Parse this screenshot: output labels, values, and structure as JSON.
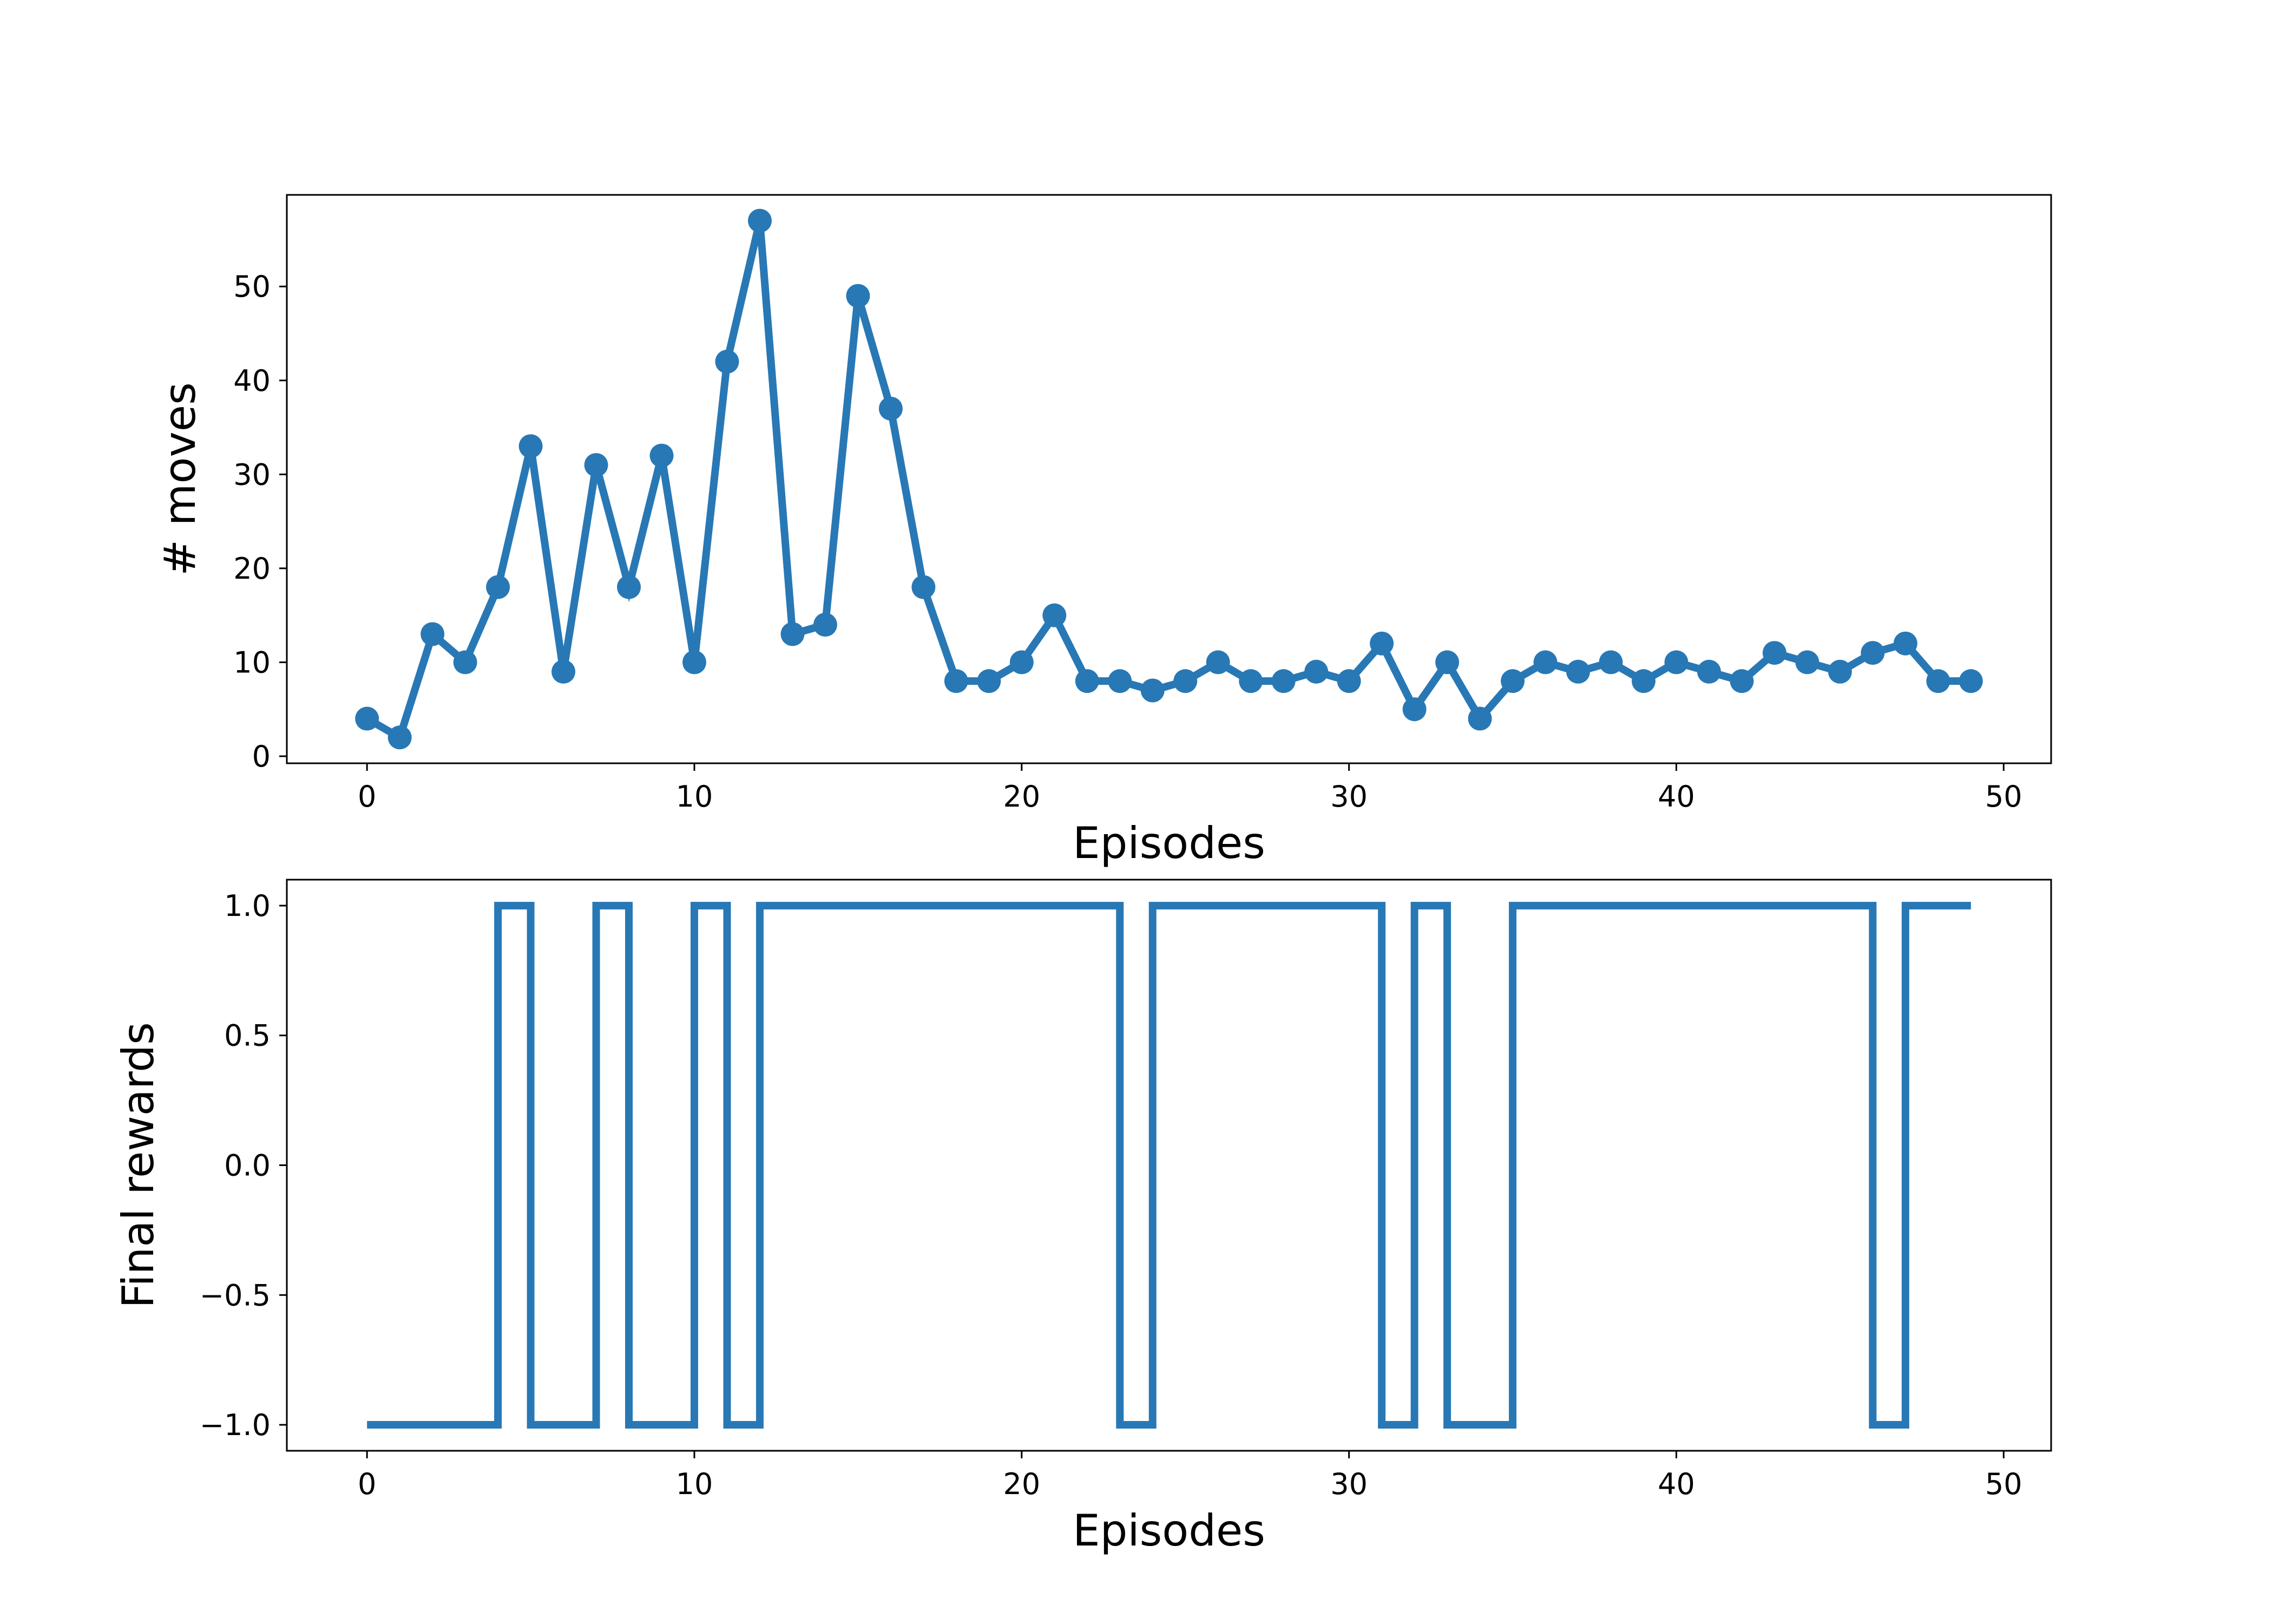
{
  "chart_data": [
    {
      "type": "line",
      "marker": "circle",
      "color": "#2878b5",
      "xlabel": "Episodes",
      "ylabel": "# moves",
      "xlim": [
        -2.45,
        51.45
      ],
      "ylim": [
        -0.75,
        59.75
      ],
      "xticks": [
        0,
        10,
        20,
        30,
        40,
        50
      ],
      "yticks": [
        0,
        10,
        20,
        30,
        40,
        50
      ],
      "grid": false,
      "series": [
        {
          "x": [
            0,
            1,
            2,
            3,
            4,
            5,
            6,
            7,
            8,
            9,
            10,
            11,
            12,
            13,
            14,
            15,
            16,
            17,
            18,
            19,
            20,
            21,
            22,
            23,
            24,
            25,
            26,
            27,
            28,
            29,
            30,
            31,
            32,
            33,
            34,
            35,
            36,
            37,
            38,
            39,
            40,
            41,
            42,
            43,
            44,
            45,
            46,
            47,
            48,
            49
          ],
          "values": [
            4,
            2,
            13,
            10,
            18,
            33,
            9,
            31,
            18,
            32,
            10,
            42,
            57,
            13,
            14,
            49,
            37,
            18,
            8,
            8,
            10,
            15,
            8,
            8,
            7,
            8,
            10,
            8,
            8,
            9,
            8,
            12,
            5,
            10,
            4,
            8,
            10,
            9,
            10,
            8,
            10,
            9,
            8,
            11,
            10,
            9,
            11,
            12,
            8,
            8
          ]
        }
      ]
    },
    {
      "type": "line",
      "drawstyle": "steps-post",
      "color": "#2878b5",
      "xlabel": "Episodes",
      "ylabel": "Final rewards",
      "xlim": [
        -2.45,
        51.45
      ],
      "ylim": [
        -1.1,
        1.1
      ],
      "xticks": [
        0,
        10,
        20,
        30,
        40,
        50
      ],
      "yticks": [
        -1.0,
        -0.5,
        0.0,
        0.5,
        1.0
      ],
      "ytick_labels": [
        "−1.0",
        "−0.5",
        "0.0",
        "0.5",
        "1.0"
      ],
      "grid": false,
      "series": [
        {
          "x": [
            0,
            1,
            2,
            3,
            4,
            5,
            6,
            7,
            8,
            9,
            10,
            11,
            12,
            13,
            14,
            15,
            16,
            17,
            18,
            19,
            20,
            21,
            22,
            23,
            24,
            25,
            26,
            27,
            28,
            29,
            30,
            31,
            32,
            33,
            34,
            35,
            36,
            37,
            38,
            39,
            40,
            41,
            42,
            43,
            44,
            45,
            46,
            47,
            48,
            49
          ],
          "values": [
            -1,
            -1,
            -1,
            -1,
            1,
            -1,
            -1,
            1,
            -1,
            -1,
            1,
            -1,
            1,
            1,
            1,
            1,
            1,
            1,
            1,
            1,
            1,
            1,
            1,
            -1,
            1,
            1,
            1,
            1,
            1,
            1,
            1,
            -1,
            1,
            -1,
            -1,
            1,
            1,
            1,
            1,
            1,
            1,
            1,
            1,
            1,
            1,
            1,
            -1,
            1,
            1,
            1
          ]
        }
      ]
    }
  ]
}
